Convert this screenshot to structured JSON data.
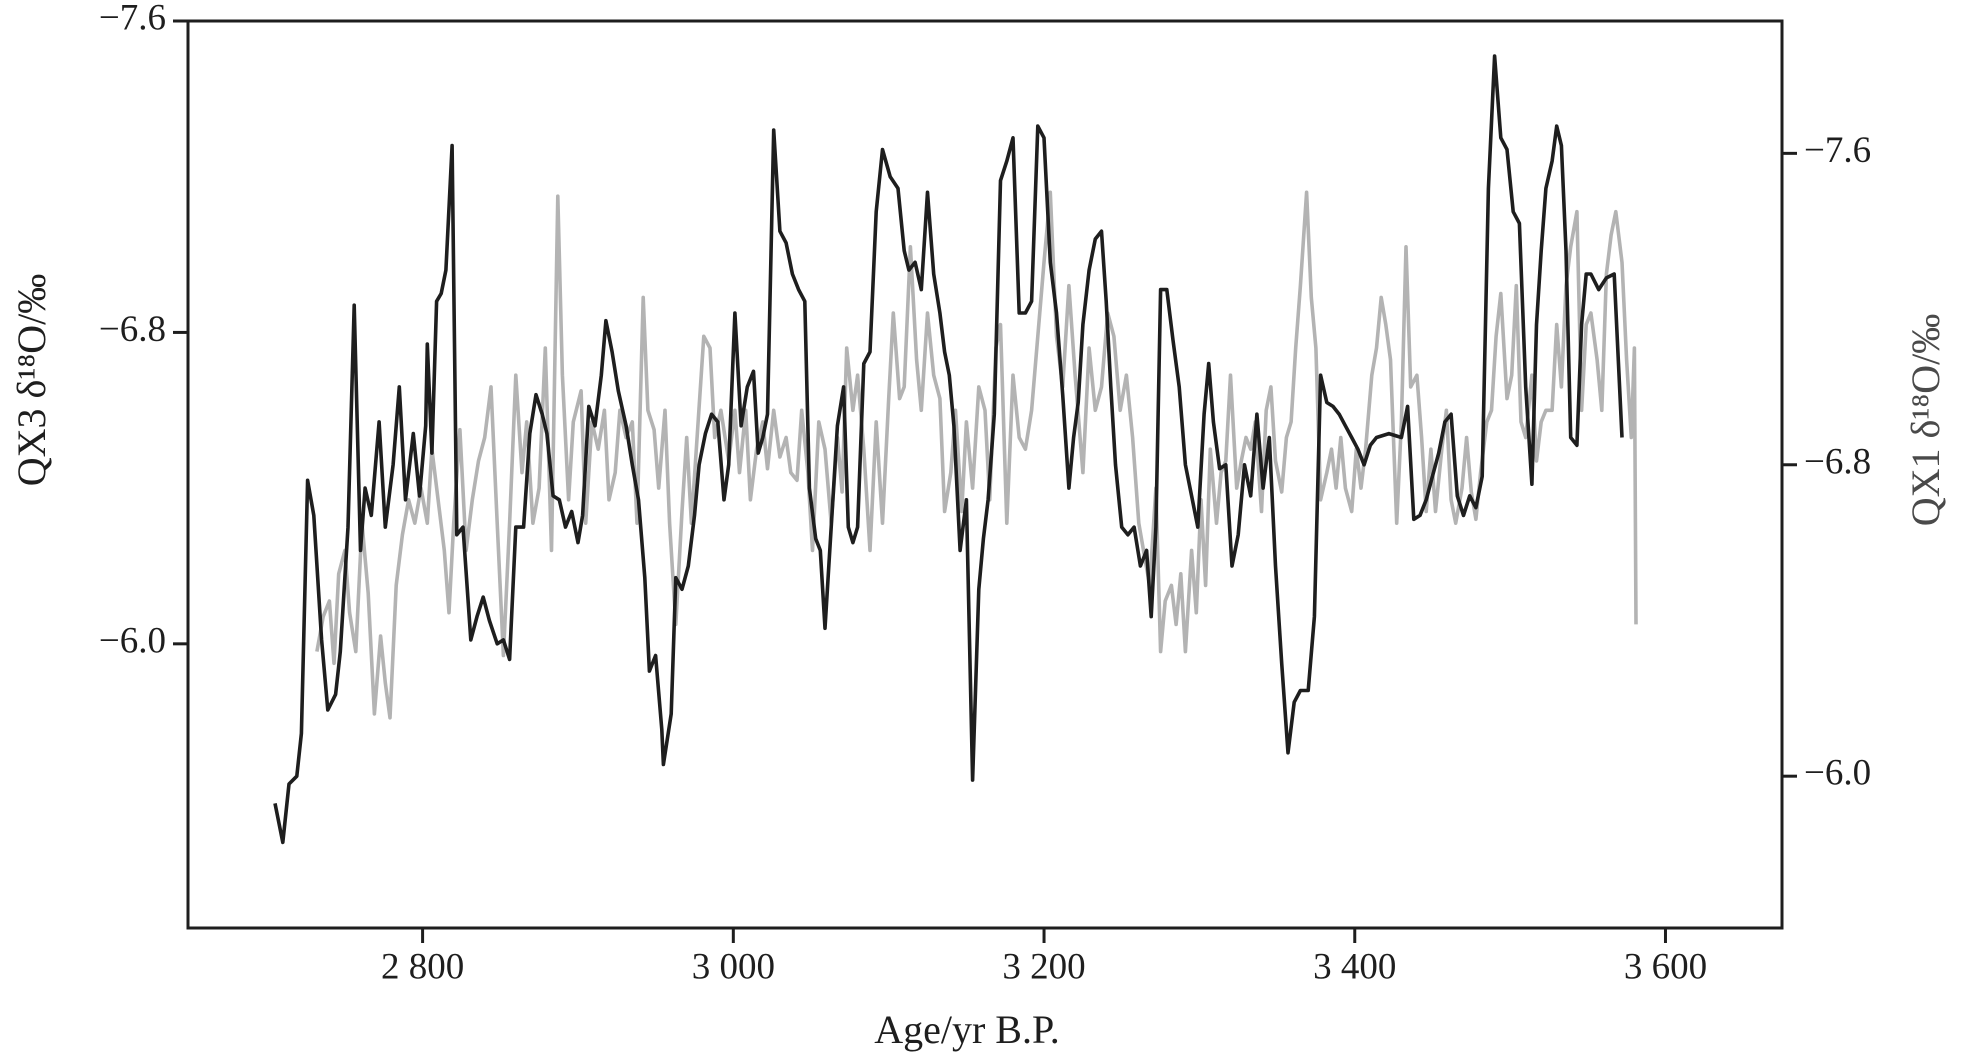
{
  "chart_data": {
    "type": "line",
    "xlabel": "Age/yr B.P.",
    "ylabel": "QX3 δ¹⁸O/‰",
    "y2label": "QX1 δ¹⁸O/‰",
    "xlim": [
      2649,
      3675
    ],
    "xticks": [
      {
        "value": 2800,
        "label": "2 800"
      },
      {
        "value": 3000,
        "label": "3 000"
      },
      {
        "value": 3200,
        "label": "3 200"
      },
      {
        "value": 3400,
        "label": "3 400"
      },
      {
        "value": 3600,
        "label": "3 600"
      }
    ],
    "ylim": [
      -5.27,
      -7.6
    ],
    "yticks": [
      {
        "value": -7.6,
        "label": "−7.6"
      },
      {
        "value": -6.8,
        "label": "−6.8"
      },
      {
        "value": -6.0,
        "label": "−6.0"
      }
    ],
    "y2lim": [
      -5.61,
      -7.94
    ],
    "y2ticks": [
      {
        "value": -7.6,
        "label": "−7.6"
      },
      {
        "value": -6.8,
        "label": "−6.8"
      },
      {
        "value": -6.0,
        "label": "−6.0"
      }
    ],
    "series": [
      {
        "color": "#1e1e1e",
        "axis": "y",
        "x": [
          2705,
          2710,
          2714,
          2719,
          2722,
          2726,
          2730,
          2735,
          2739,
          2744,
          2747,
          2752,
          2756,
          2760,
          2763,
          2767,
          2772,
          2776,
          2781,
          2785,
          2789,
          2794,
          2798,
          2802,
          2803,
          2806,
          2809,
          2812,
          2815,
          2819,
          2822,
          2826,
          2831,
          2835,
          2839,
          2843,
          2848,
          2852,
          2856,
          2860,
          2865,
          2869,
          2873,
          2877,
          2880,
          2884,
          2888,
          2892,
          2896,
          2900,
          2903,
          2907,
          2911,
          2915,
          2918,
          2922,
          2926,
          2931,
          2935,
          2939,
          2943,
          2946,
          2950,
          2954,
          2955,
          2960,
          2963,
          2967,
          2971,
          2975,
          2978,
          2982,
          2986,
          2990,
          2994,
          2997,
          3001,
          3005,
          3009,
          3013,
          3016,
          3019,
          3022,
          3026,
          3030,
          3034,
          3038,
          3042,
          3046,
          3049,
          3053,
          3056,
          3059,
          3063,
          3067,
          3071,
          3074,
          3077,
          3080,
          3084,
          3088,
          3092,
          3096,
          3101,
          3106,
          3110,
          3113,
          3117,
          3121,
          3125,
          3129,
          3133,
          3136,
          3139,
          3142,
          3146,
          3150,
          3154,
          3158,
          3161,
          3164,
          3168,
          3172,
          3176,
          3180,
          3184,
          3188,
          3192,
          3196,
          3200,
          3204,
          3208,
          3212,
          3216,
          3219,
          3222,
          3225,
          3229,
          3233,
          3237,
          3240,
          3243,
          3246,
          3250,
          3254,
          3258,
          3262,
          3266,
          3269,
          3272,
          3275,
          3279,
          3283,
          3287,
          3291,
          3295,
          3299,
          3303,
          3306,
          3309,
          3313,
          3317,
          3321,
          3325,
          3329,
          3333,
          3337,
          3341,
          3345,
          3349,
          3353,
          3357,
          3361,
          3365,
          3370,
          3374,
          3378,
          3382,
          3386,
          3390,
          3394,
          3398,
          3402,
          3406,
          3410,
          3414,
          3422,
          3430,
          3434,
          3438,
          3442,
          3446,
          3450,
          3454,
          3458,
          3462,
          3466,
          3470,
          3474,
          3478,
          3482,
          3486,
          3490,
          3494,
          3498,
          3502,
          3506,
          3510,
          3514,
          3517,
          3520,
          3523,
          3527,
          3530,
          3533,
          3536,
          3539,
          3543,
          3546,
          3549,
          3552,
          3557,
          3562,
          3567,
          3572
        ],
        "values": [
          -5.59,
          -5.49,
          -5.64,
          -5.66,
          -5.77,
          -6.42,
          -6.33,
          -6.01,
          -5.83,
          -5.87,
          -5.98,
          -6.3,
          -6.87,
          -6.24,
          -6.4,
          -6.33,
          -6.57,
          -6.3,
          -6.46,
          -6.66,
          -6.37,
          -6.54,
          -6.38,
          -6.56,
          -6.77,
          -6.49,
          -6.88,
          -6.9,
          -6.96,
          -7.28,
          -6.28,
          -6.3,
          -6.01,
          -6.07,
          -6.12,
          -6.06,
          -6.0,
          -6.01,
          -5.96,
          -6.3,
          -6.3,
          -6.54,
          -6.64,
          -6.59,
          -6.54,
          -6.38,
          -6.37,
          -6.3,
          -6.34,
          -6.26,
          -6.33,
          -6.61,
          -6.56,
          -6.69,
          -6.83,
          -6.75,
          -6.65,
          -6.56,
          -6.46,
          -6.37,
          -6.17,
          -5.93,
          -5.97,
          -5.78,
          -5.69,
          -5.82,
          -6.17,
          -6.14,
          -6.2,
          -6.33,
          -6.46,
          -6.54,
          -6.59,
          -6.57,
          -6.37,
          -6.46,
          -6.85,
          -6.56,
          -6.66,
          -6.7,
          -6.49,
          -6.53,
          -6.59,
          -7.32,
          -7.06,
          -7.03,
          -6.95,
          -6.91,
          -6.88,
          -6.4,
          -6.27,
          -6.24,
          -6.04,
          -6.3,
          -6.56,
          -6.66,
          -6.3,
          -6.26,
          -6.3,
          -6.72,
          -6.75,
          -7.11,
          -7.27,
          -7.2,
          -7.17,
          -7.01,
          -6.96,
          -6.98,
          -6.91,
          -7.16,
          -6.95,
          -6.85,
          -6.75,
          -6.69,
          -6.56,
          -6.24,
          -6.37,
          -5.65,
          -6.14,
          -6.27,
          -6.37,
          -6.59,
          -7.19,
          -7.24,
          -7.3,
          -6.85,
          -6.85,
          -6.88,
          -7.33,
          -7.3,
          -6.98,
          -6.85,
          -6.64,
          -6.4,
          -6.53,
          -6.62,
          -6.82,
          -6.96,
          -7.04,
          -7.06,
          -6.88,
          -6.66,
          -6.46,
          -6.3,
          -6.28,
          -6.3,
          -6.2,
          -6.24,
          -6.07,
          -6.3,
          -6.91,
          -6.91,
          -6.78,
          -6.66,
          -6.46,
          -6.38,
          -6.3,
          -6.59,
          -6.72,
          -6.57,
          -6.45,
          -6.46,
          -6.2,
          -6.28,
          -6.46,
          -6.38,
          -6.59,
          -6.4,
          -6.53,
          -6.2,
          -5.95,
          -5.72,
          -5.85,
          -5.88,
          -5.88,
          -6.07,
          -6.69,
          -6.62,
          -6.61,
          -6.59,
          -6.56,
          -6.53,
          -6.5,
          -6.46,
          -6.51,
          -6.53,
          -6.54,
          -6.53,
          -6.61,
          -6.32,
          -6.33,
          -6.37,
          -6.43,
          -6.49,
          -6.57,
          -6.59,
          -6.38,
          -6.33,
          -6.38,
          -6.35,
          -6.43,
          -7.17,
          -7.51,
          -7.3,
          -7.27,
          -7.11,
          -7.08,
          -6.66,
          -6.41,
          -6.82,
          -7.01,
          -7.17,
          -7.24,
          -7.33,
          -7.28,
          -7.01,
          -6.53,
          -6.51,
          -6.82,
          -6.95,
          -6.95,
          -6.91,
          -6.94,
          -6.95,
          -6.53
        ]
      },
      {
        "color": "#b3b3b3",
        "axis": "y2",
        "x": [
          2732,
          2736,
          2740,
          2743,
          2746,
          2750,
          2753,
          2757,
          2761,
          2765,
          2769,
          2773,
          2776,
          2779,
          2783,
          2787,
          2791,
          2795,
          2799,
          2803,
          2806,
          2810,
          2814,
          2817,
          2820,
          2824,
          2828,
          2832,
          2836,
          2840,
          2844,
          2848,
          2852,
          2856,
          2860,
          2864,
          2867,
          2871,
          2875,
          2879,
          2883,
          2887,
          2890,
          2894,
          2897,
          2902,
          2905,
          2909,
          2913,
          2917,
          2920,
          2924,
          2927,
          2931,
          2935,
          2938,
          2942,
          2945,
          2949,
          2952,
          2956,
          2959,
          2963,
          2967,
          2970,
          2973,
          2977,
          2981,
          2985,
          2988,
          2992,
          2997,
          3001,
          3004,
          3008,
          3011,
          3015,
          3019,
          3022,
          3026,
          3030,
          3034,
          3037,
          3041,
          3044,
          3048,
          3051,
          3055,
          3059,
          3063,
          3067,
          3070,
          3073,
          3077,
          3080,
          3084,
          3088,
          3092,
          3096,
          3100,
          3103,
          3107,
          3110,
          3114,
          3118,
          3121,
          3125,
          3129,
          3133,
          3136,
          3140,
          3143,
          3147,
          3150,
          3154,
          3158,
          3162,
          3165,
          3169,
          3172,
          3176,
          3180,
          3184,
          3188,
          3192,
          3196,
          3200,
          3204,
          3208,
          3212,
          3216,
          3220,
          3225,
          3229,
          3233,
          3237,
          3241,
          3245,
          3249,
          3253,
          3257,
          3261,
          3264,
          3268,
          3272,
          3275,
          3278,
          3282,
          3285,
          3288,
          3291,
          3295,
          3298,
          3301,
          3304,
          3307,
          3311,
          3314,
          3317,
          3320,
          3324,
          3327,
          3330,
          3333,
          3336,
          3340,
          3343,
          3346,
          3349,
          3353,
          3356,
          3359,
          3362,
          3365,
          3369,
          3372,
          3375,
          3378,
          3382,
          3385,
          3388,
          3391,
          3394,
          3398,
          3401,
          3404,
          3407,
          3411,
          3414,
          3417,
          3420,
          3423,
          3427,
          3430,
          3433,
          3436,
          3440,
          3443,
          3446,
          3449,
          3452,
          3456,
          3459,
          3462,
          3465,
          3469,
          3472,
          3475,
          3478,
          3481,
          3485,
          3488,
          3491,
          3494,
          3498,
          3501,
          3504,
          3507,
          3510,
          3514,
          3517,
          3520,
          3523,
          3527,
          3530,
          3533,
          3536,
          3539,
          3543,
          3546,
          3549,
          3552,
          3556,
          3559,
          3562,
          3565,
          3568,
          3572,
          3575,
          3578,
          3580,
          3581
        ],
        "values": [
          -6.32,
          -6.41,
          -6.45,
          -6.29,
          -6.52,
          -6.58,
          -6.42,
          -6.32,
          -6.65,
          -6.47,
          -6.16,
          -6.36,
          -6.24,
          -6.15,
          -6.49,
          -6.62,
          -6.71,
          -6.65,
          -6.74,
          -6.65,
          -6.84,
          -6.71,
          -6.58,
          -6.42,
          -6.65,
          -6.89,
          -6.58,
          -6.71,
          -6.81,
          -6.87,
          -7.0,
          -6.65,
          -6.31,
          -6.65,
          -7.03,
          -6.78,
          -6.91,
          -6.65,
          -6.74,
          -7.1,
          -6.58,
          -7.49,
          -7.03,
          -6.71,
          -6.91,
          -6.99,
          -6.65,
          -6.91,
          -6.84,
          -6.94,
          -6.71,
          -6.78,
          -6.94,
          -6.87,
          -6.91,
          -6.65,
          -7.23,
          -6.94,
          -6.89,
          -6.74,
          -6.94,
          -6.65,
          -6.39,
          -6.68,
          -6.87,
          -6.65,
          -6.89,
          -7.13,
          -7.1,
          -6.87,
          -6.94,
          -6.81,
          -6.94,
          -6.78,
          -6.94,
          -6.71,
          -6.84,
          -6.91,
          -6.79,
          -6.94,
          -6.82,
          -6.87,
          -6.78,
          -6.76,
          -6.94,
          -6.78,
          -6.58,
          -6.91,
          -6.84,
          -6.65,
          -6.87,
          -6.73,
          -7.1,
          -6.94,
          -7.03,
          -6.84,
          -6.58,
          -6.91,
          -6.65,
          -6.97,
          -7.19,
          -6.97,
          -7.0,
          -7.36,
          -7.07,
          -6.94,
          -7.19,
          -7.03,
          -6.97,
          -6.68,
          -6.78,
          -6.94,
          -6.68,
          -6.91,
          -6.74,
          -7.0,
          -6.94,
          -6.71,
          -7.1,
          -7.16,
          -6.65,
          -7.03,
          -6.87,
          -6.84,
          -6.94,
          -7.13,
          -7.32,
          -7.5,
          -7.13,
          -7.0,
          -7.26,
          -7.03,
          -6.78,
          -7.1,
          -6.94,
          -7.0,
          -7.19,
          -7.13,
          -6.94,
          -7.03,
          -6.87,
          -6.65,
          -6.58,
          -6.49,
          -6.74,
          -6.32,
          -6.45,
          -6.49,
          -6.39,
          -6.52,
          -6.32,
          -6.58,
          -6.42,
          -6.71,
          -6.49,
          -6.84,
          -6.65,
          -6.78,
          -6.81,
          -7.03,
          -6.74,
          -6.81,
          -6.87,
          -6.84,
          -6.91,
          -6.68,
          -6.94,
          -7.0,
          -6.81,
          -6.73,
          -6.87,
          -6.91,
          -7.1,
          -7.26,
          -7.5,
          -7.23,
          -7.1,
          -6.71,
          -6.78,
          -6.84,
          -6.74,
          -6.87,
          -6.74,
          -6.68,
          -6.84,
          -6.74,
          -6.84,
          -7.03,
          -7.1,
          -7.23,
          -7.16,
          -7.07,
          -6.65,
          -6.91,
          -7.36,
          -7.0,
          -7.03,
          -6.87,
          -6.68,
          -6.84,
          -6.68,
          -6.84,
          -6.94,
          -6.71,
          -6.65,
          -6.74,
          -6.87,
          -6.73,
          -6.66,
          -6.78,
          -6.91,
          -6.94,
          -7.13,
          -7.24,
          -6.97,
          -7.03,
          -7.26,
          -6.91,
          -6.87,
          -7.03,
          -6.81,
          -6.91,
          -6.94,
          -6.94,
          -7.16,
          -7.0,
          -7.26,
          -7.36,
          -7.45,
          -6.94,
          -7.16,
          -7.19,
          -7.07,
          -6.94,
          -7.29,
          -7.39,
          -7.45,
          -7.32,
          -7.07,
          -6.87,
          -7.1,
          -6.39
        ]
      }
    ]
  }
}
